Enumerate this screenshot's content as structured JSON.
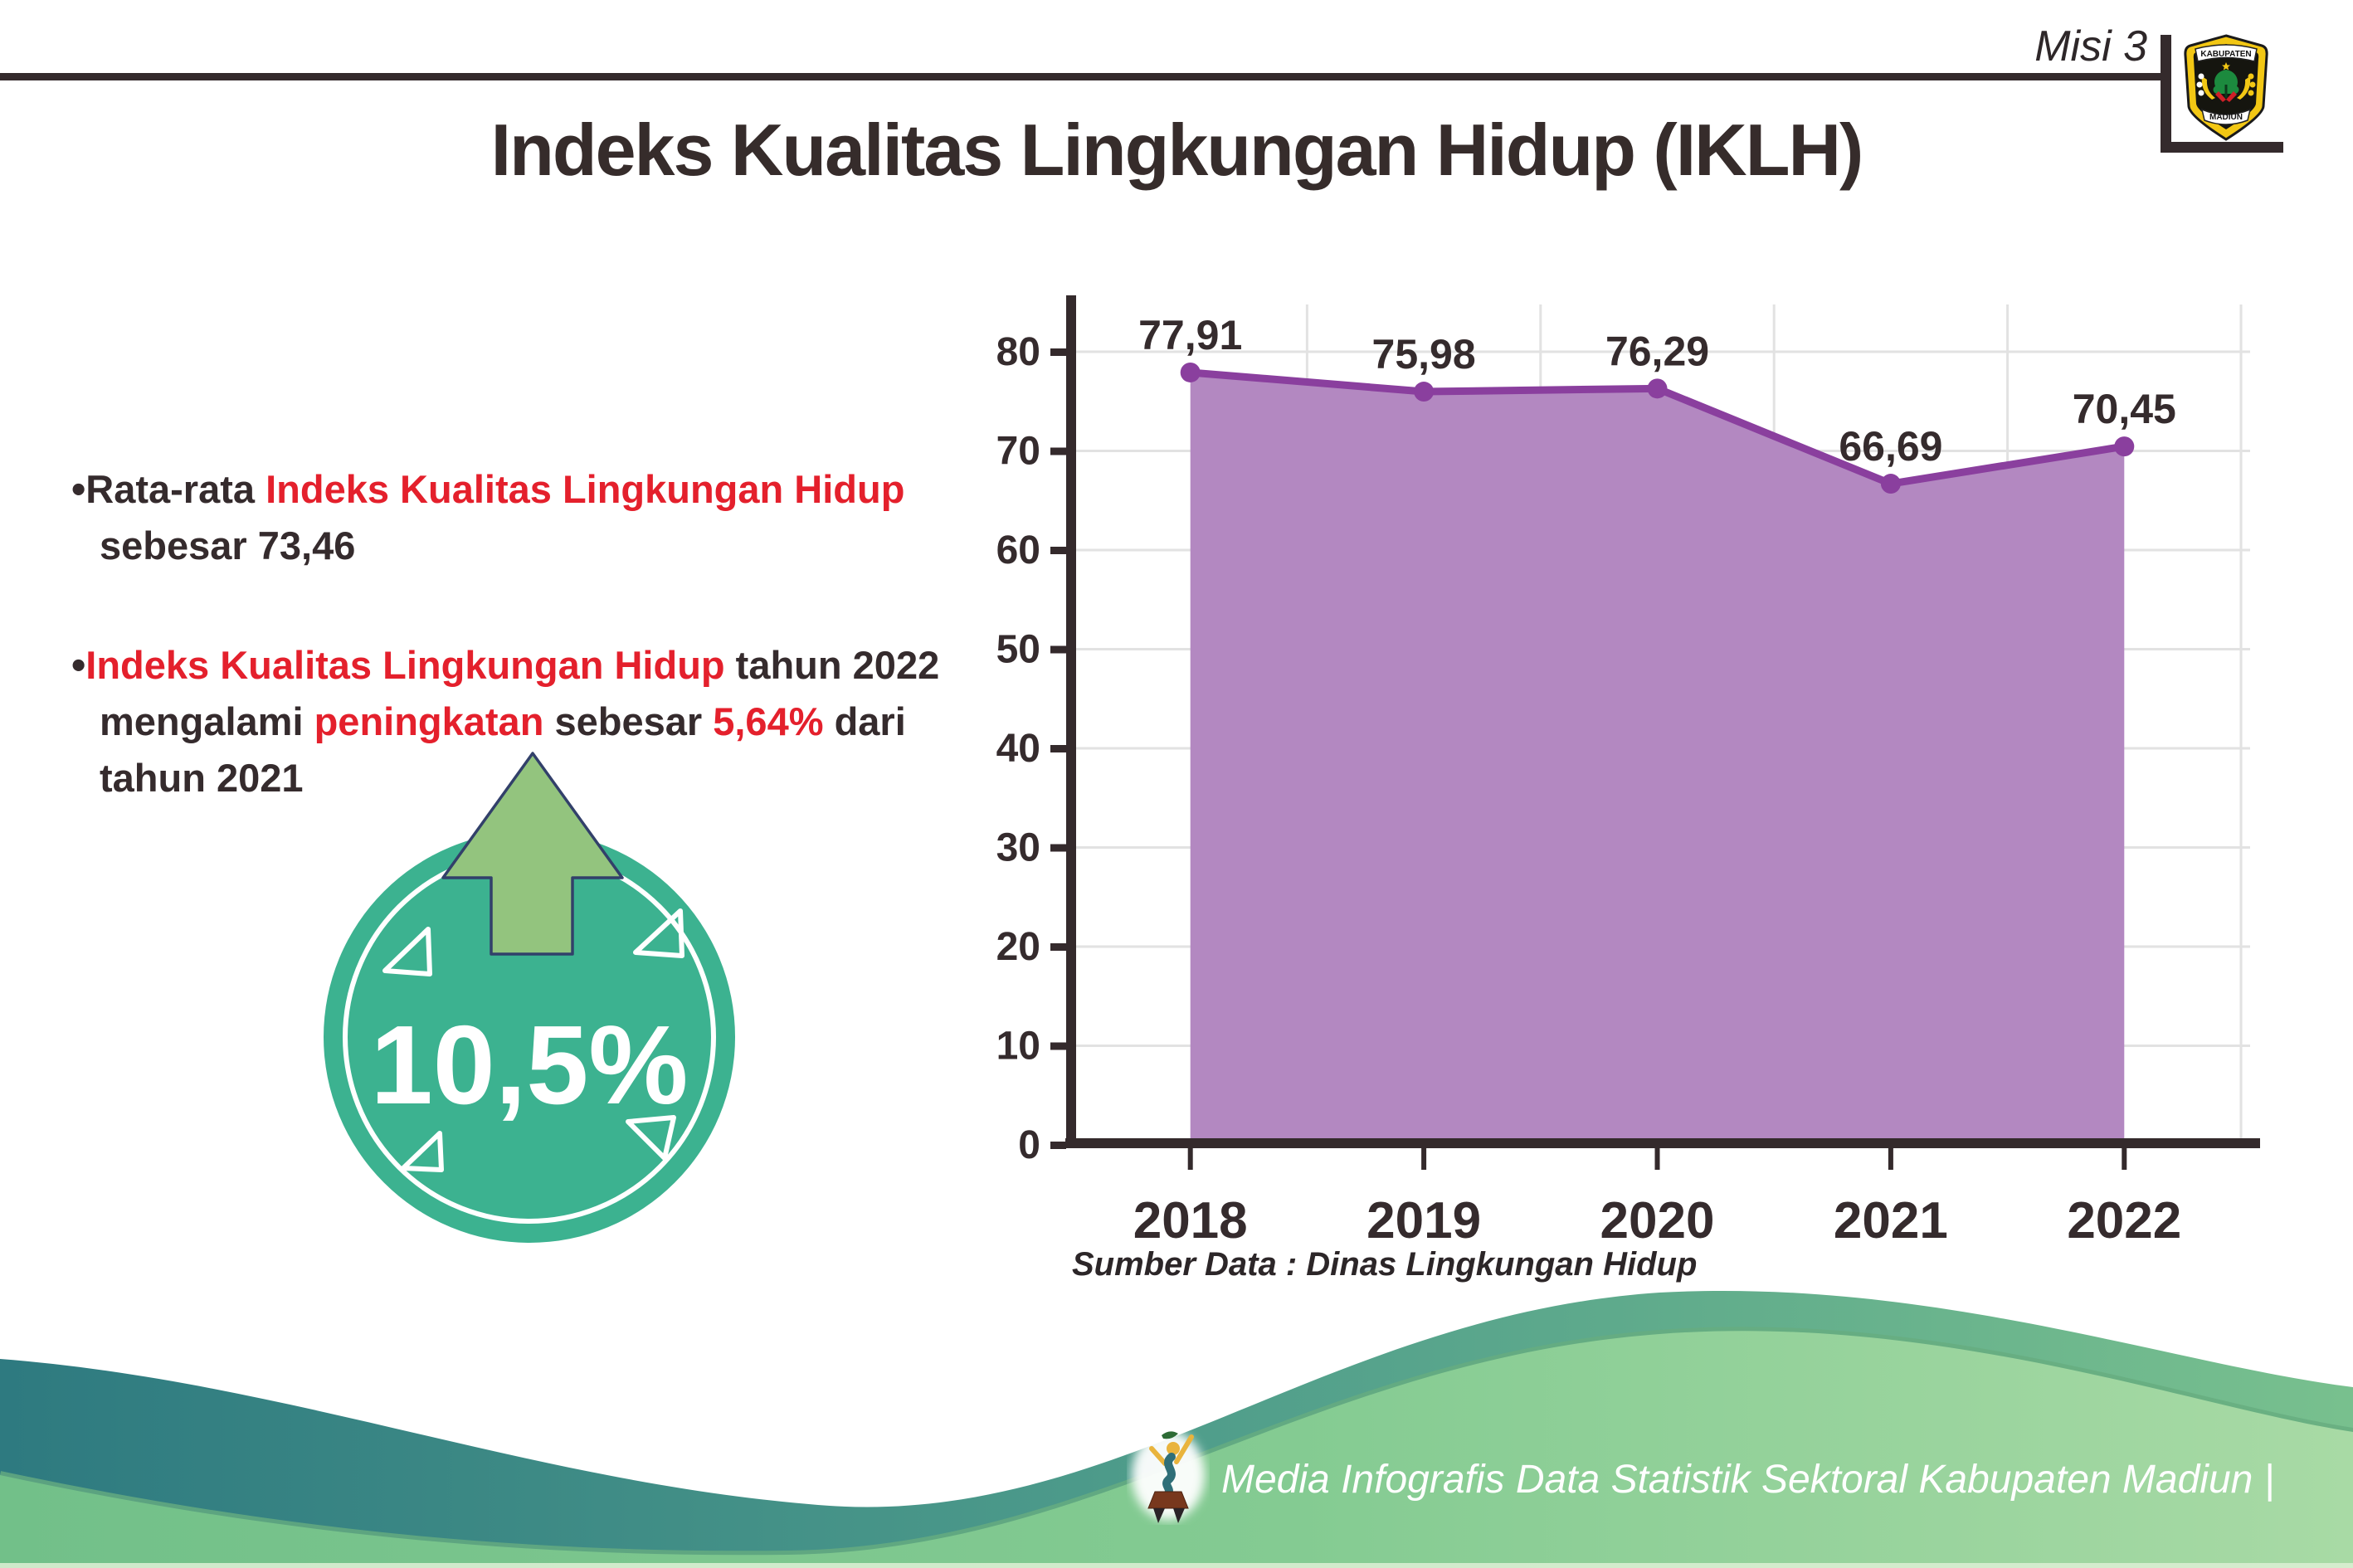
{
  "header": {
    "misi_label": "Misi 3",
    "logo": {
      "top_text": "KABUPATEN",
      "bottom_text": "MADIUN"
    }
  },
  "title": "Indeks Kualitas Lingkungan Hidup (IKLH)",
  "bullets": {
    "dot": "•",
    "b1": {
      "s1": "Rata-rata ",
      "s2": "Indeks Kualitas Lingkungan Hidup",
      "s3": "\nsebesar 73,46"
    },
    "b2": {
      "s1": "Indeks Kualitas Lingkungan Hidup",
      "s2": " tahun 2022\nmengalami ",
      "s3": "peningkatan",
      "s4": " sebesar ",
      "s5": "5,64%",
      "s6": " dari\ntahun 2021"
    }
  },
  "badge": {
    "value": "10,5%"
  },
  "chart_data": {
    "type": "area",
    "title": "",
    "categories": [
      "2018",
      "2019",
      "2020",
      "2021",
      "2022"
    ],
    "values": [
      77.91,
      75.98,
      76.29,
      66.69,
      70.45
    ],
    "value_labels": [
      "77,91",
      "75,98",
      "76,29",
      "66,69",
      "70,45"
    ],
    "ylim": [
      0,
      80
    ],
    "yticks": [
      0,
      10,
      20,
      30,
      40,
      50,
      60,
      70,
      80
    ],
    "grid": true,
    "legend": false,
    "line_color": "#8a3f9e",
    "fill_color": "#b388c1",
    "source_note": "Sumber Data : Dinas Lingkungan Hidup"
  },
  "footer": {
    "caption": "Media Infografis Data Statistik Sektoral Kabupaten Madiun |"
  },
  "colors": {
    "dark_text": "#352b2d",
    "red_text": "#e4202c",
    "badge_teal": "#3cb290",
    "arrow_green": "#93c47e",
    "axis": "#342a2c",
    "grid": "#e2e2e2"
  }
}
